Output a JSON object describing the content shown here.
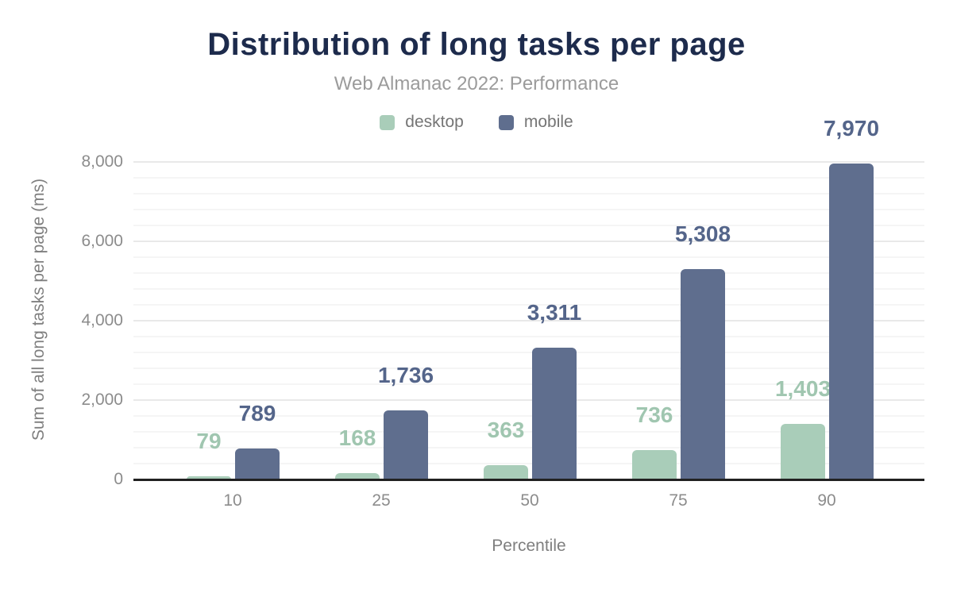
{
  "title": "Distribution of long tasks per page",
  "subtitle": "Web Almanac 2022: Performance",
  "colors": {
    "title_text": "#1d2b4c",
    "subtitle_text": "#9b9b9b",
    "legend_text": "#757575",
    "tick_text": "#8c8c8c",
    "axis_title_text": "#7f7f7f",
    "grid_minor": "#f5f5f5",
    "grid_major": "#e9e9e9",
    "axis_line": "#212121",
    "background": "#ffffff"
  },
  "legend": {
    "items": [
      {
        "label": "desktop",
        "color": "#a9cdb9"
      },
      {
        "label": "mobile",
        "color": "#5f6e8e"
      }
    ]
  },
  "chart_data": {
    "type": "bar",
    "title": "Distribution of long tasks per page",
    "subtitle": "Web Almanac 2022: Performance",
    "categories": [
      "10",
      "25",
      "50",
      "75",
      "90"
    ],
    "series": [
      {
        "name": "desktop",
        "values": [
          79,
          168,
          363,
          736,
          1403
        ],
        "labels": [
          "79",
          "168",
          "363",
          "736",
          "1,403"
        ],
        "color": "#a9cdb9",
        "label_color": "#a0c6b0"
      },
      {
        "name": "mobile",
        "values": [
          789,
          1736,
          3311,
          5308,
          7970
        ],
        "labels": [
          "789",
          "1,736",
          "3,311",
          "5,308",
          "7,970"
        ],
        "color": "#5f6e8e",
        "label_color": "#54658a"
      }
    ],
    "xlabel": "Percentile",
    "ylabel": "Sum of all long tasks per page (ms)",
    "ylim": [
      0,
      8000
    ],
    "yticks": [
      {
        "value": 0,
        "label": "0"
      },
      {
        "value": 2000,
        "label": "2,000"
      },
      {
        "value": 4000,
        "label": "4,000"
      },
      {
        "value": 6000,
        "label": "6,000"
      },
      {
        "value": 8000,
        "label": "8,000"
      }
    ],
    "grid": {
      "on": true,
      "minor_step": 400,
      "major_step": 2000
    },
    "legend_position": "top"
  }
}
